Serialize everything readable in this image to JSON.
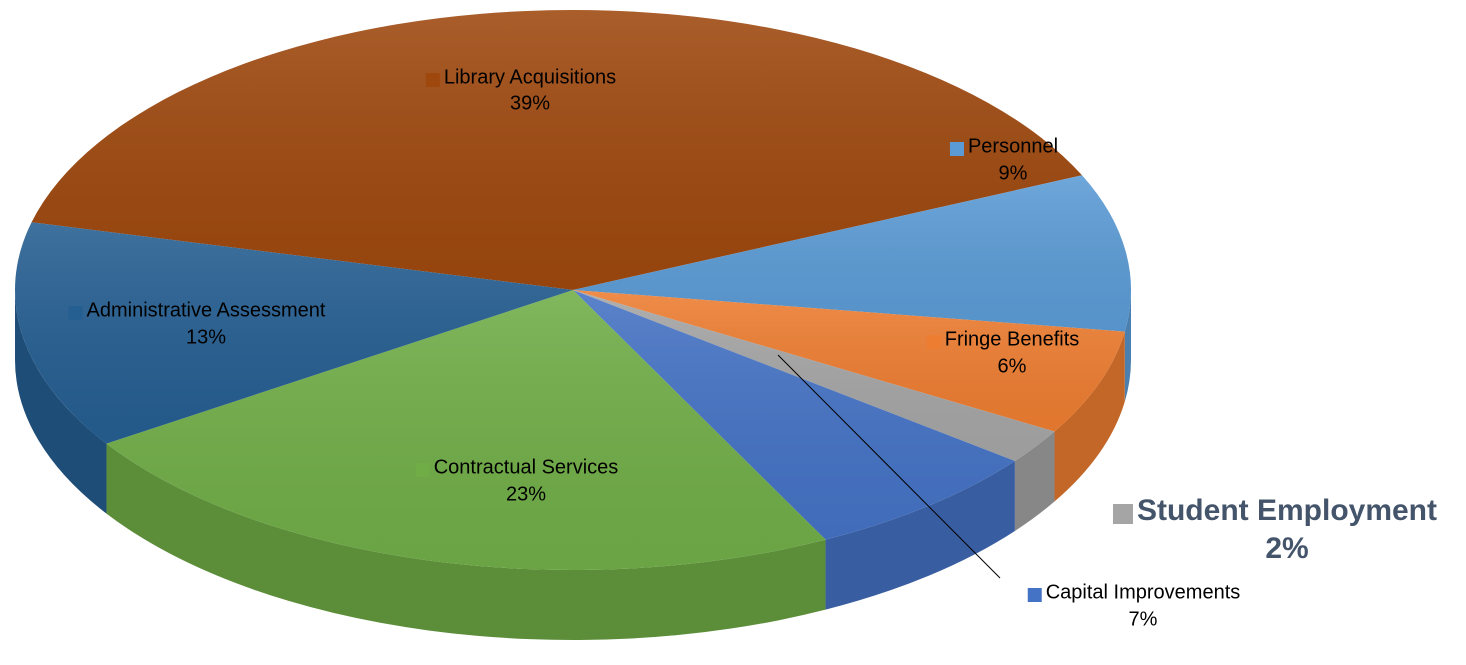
{
  "chart_data": {
    "type": "pie",
    "categories": [
      "Library Acquisitions",
      "Personnel",
      "Fringe Benefits",
      "Student Employment",
      "Capital Improvements",
      "Contractual Services",
      "Administrative Assessment"
    ],
    "values": [
      39,
      9,
      6,
      2,
      7,
      23,
      13
    ],
    "value_labels": [
      "39%",
      "9%",
      "6%",
      "2%",
      "7%",
      "23%",
      "13%"
    ],
    "colors": [
      "#9e480e",
      "#5b9bd5",
      "#ed7d31",
      "#a5a5a5",
      "#4472c4",
      "#70ad47",
      "#255e91"
    ]
  }
}
